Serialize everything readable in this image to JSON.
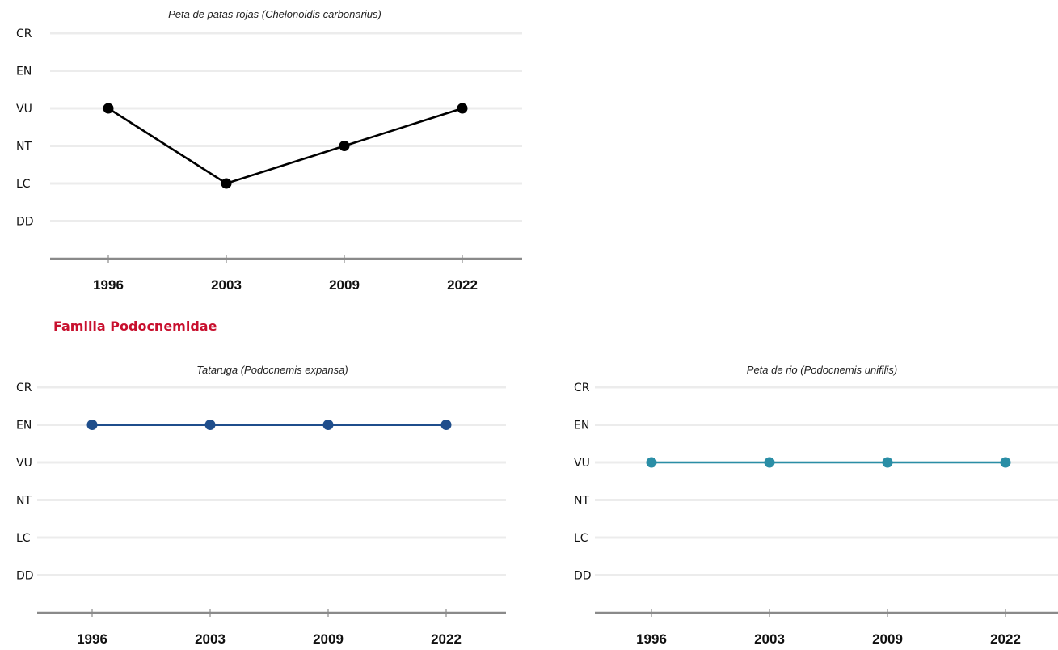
{
  "section_heading": "Familia Podocnemidae",
  "chart_data": [
    {
      "type": "line",
      "title": "Peta de patas rojas (Chelonoidis carbonarius)",
      "categories": [
        "1996",
        "2003",
        "2009",
        "2022"
      ],
      "y_categories": [
        "CR",
        "EN",
        "VU",
        "NT",
        "LC",
        "DD"
      ],
      "values": [
        "VU",
        "LC",
        "NT",
        "VU"
      ],
      "color": "#000000"
    },
    {
      "type": "line",
      "title": "Tataruga (Podocnemis expansa)",
      "categories": [
        "1996",
        "2003",
        "2009",
        "2022"
      ],
      "y_categories": [
        "CR",
        "EN",
        "VU",
        "NT",
        "LC",
        "DD"
      ],
      "values": [
        "EN",
        "EN",
        "EN",
        "EN"
      ],
      "color": "#1f4e8c"
    },
    {
      "type": "line",
      "title": "Peta de rio (Podocnemis unifilis)",
      "categories": [
        "1996",
        "2003",
        "2009",
        "2022"
      ],
      "y_categories": [
        "CR",
        "EN",
        "VU",
        "NT",
        "LC",
        "DD"
      ],
      "values": [
        "VU",
        "VU",
        "VU",
        "VU"
      ],
      "color": "#2a8ea6"
    }
  ]
}
